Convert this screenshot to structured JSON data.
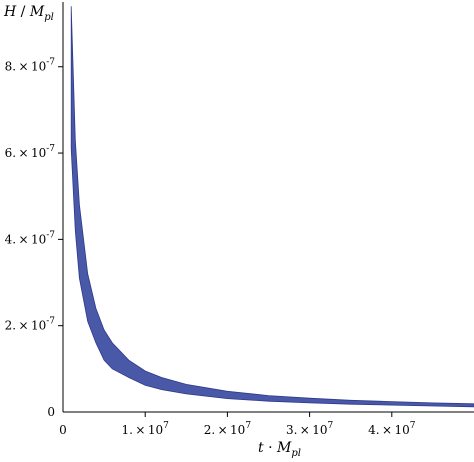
{
  "chart_data": {
    "type": "area",
    "title": "",
    "xlabel": {
      "main": "t",
      "op": " · ",
      "var": "M",
      "sub": "pl"
    },
    "ylabel": {
      "main": "H",
      "op": " / ",
      "var": "M",
      "sub": "pl"
    },
    "xlim": [
      0,
      50000000
    ],
    "ylim": [
      0,
      9.5e-07
    ],
    "x_ticks": [
      {
        "value": 10000000,
        "mantissa": "1.",
        "exp": "7"
      },
      {
        "value": 20000000,
        "mantissa": "2.",
        "exp": "7"
      },
      {
        "value": 30000000,
        "mantissa": "3.",
        "exp": "7"
      },
      {
        "value": 40000000,
        "mantissa": "4.",
        "exp": "7"
      }
    ],
    "x_origin_label": "0",
    "y_ticks": [
      {
        "value": 2e-07,
        "mantissa": "2.",
        "exp": "-7"
      },
      {
        "value": 4e-07,
        "mantissa": "4.",
        "exp": "-7"
      },
      {
        "value": 6e-07,
        "mantissa": "6.",
        "exp": "-7"
      },
      {
        "value": 8e-07,
        "mantissa": "8.",
        "exp": "-7"
      }
    ],
    "y_origin_label": "0",
    "grid": false,
    "band": {
      "color": "#4a58a8",
      "edge_color": "#2e3a8c",
      "x": [
        1000000,
        1500000,
        2000000,
        3000000,
        4000000,
        5000000,
        6000000,
        8000000,
        10000000,
        12000000,
        15000000,
        20000000,
        25000000,
        30000000,
        35000000,
        40000000,
        45000000,
        50000000
      ],
      "upper": [
        9.4e-07,
        6.3e-07,
        4.8e-07,
        3.2e-07,
        2.4e-07,
        1.9e-07,
        1.6e-07,
        1.2e-07,
        9.5e-08,
        8e-08,
        6.4e-08,
        4.8e-08,
        3.8e-08,
        3.2e-08,
        2.7e-08,
        2.4e-08,
        2.1e-08,
        1.9e-08
      ],
      "lower": [
        6.1e-07,
        4.2e-07,
        3.1e-07,
        2.1e-07,
        1.6e-07,
        1.2e-07,
        1e-07,
        8e-08,
        6.2e-08,
        5.2e-08,
        4.2e-08,
        3.1e-08,
        2.5e-08,
        2.1e-08,
        1.8e-08,
        1.6e-08,
        1.4e-08,
        1.2e-08
      ]
    }
  }
}
